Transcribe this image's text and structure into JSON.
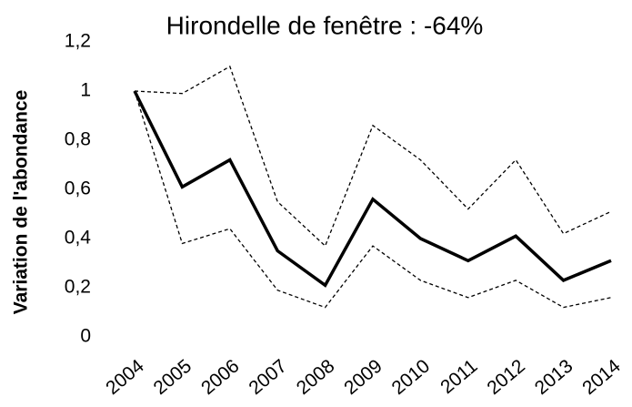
{
  "chart_data": {
    "type": "line",
    "title": "Hirondelle de fenêtre : -64%",
    "y_label": "Variation de l'abondance",
    "categories": [
      "2004",
      "2005",
      "2006",
      "2007",
      "2008",
      "2009",
      "2010",
      "2011",
      "2012",
      "2013",
      "2014"
    ],
    "series": [
      {
        "color": "#000000",
        "style": "solid",
        "values": [
          1.0,
          0.61,
          0.72,
          0.35,
          0.21,
          0.56,
          0.4,
          0.31,
          0.41,
          0.23,
          0.31
        ]
      },
      {
        "color": "#000000",
        "style": "dashed",
        "values": [
          1.0,
          0.99,
          1.1,
          0.55,
          0.37,
          0.86,
          0.72,
          0.52,
          0.72,
          0.42,
          0.51
        ]
      },
      {
        "color": "#000000",
        "style": "dashed",
        "values": [
          1.0,
          0.38,
          0.44,
          0.19,
          0.12,
          0.37,
          0.23,
          0.16,
          0.23,
          0.12,
          0.16
        ]
      }
    ],
    "ylim": [
      0,
      1.2
    ],
    "yticks": [
      0,
      {
        "value": 0.2,
        "label": "0,2"
      },
      {
        "value": 0.4,
        "label": "0,4"
      },
      {
        "value": 0.6,
        "label": "0,6"
      },
      {
        "value": 0.8,
        "label": "0,8"
      },
      1,
      {
        "value": 1.2,
        "label": "1,2"
      }
    ],
    "grid": false
  }
}
